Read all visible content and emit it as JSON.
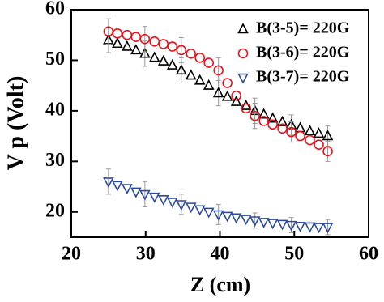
{
  "chart_data": {
    "type": "scatter",
    "x_label": "Z (cm)",
    "y_label": "V p (Volt)",
    "x": [
      25,
      26.2,
      27.5,
      28.7,
      29.9,
      31.2,
      32.4,
      33.6,
      34.8,
      36.1,
      37.3,
      38.5,
      39.8,
      41,
      42.2,
      43.5,
      44.7,
      45.9,
      47.1,
      48.4,
      49.6,
      50.8,
      52.1,
      53.3,
      54.5
    ],
    "series": [
      {
        "name": "B(3-5)= 220G",
        "color": "#000000",
        "marker": "triangle-up",
        "values": [
          54,
          53.3,
          52.7,
          52,
          51.3,
          50.5,
          49.8,
          49,
          48,
          47,
          46,
          45,
          43.5,
          42.8,
          41.8,
          41,
          40,
          39.3,
          38.5,
          37.8,
          37.2,
          36.6,
          36,
          35.5,
          35
        ],
        "errors": [
          2.5,
          null,
          null,
          null,
          2.5,
          null,
          null,
          null,
          2.5,
          null,
          null,
          null,
          2.5,
          null,
          null,
          null,
          2.5,
          null,
          null,
          null,
          2,
          null,
          null,
          null,
          2
        ]
      },
      {
        "name": "B(3-6)= 220G",
        "color": "#e8141c",
        "marker": "circle",
        "values": [
          55.7,
          55.3,
          55,
          54.6,
          54.2,
          53.7,
          53.2,
          52.7,
          52,
          51.3,
          50.5,
          49.5,
          48,
          45.5,
          43,
          40.5,
          39,
          38,
          37.3,
          36.5,
          35.8,
          35,
          34.2,
          33.3,
          32
        ],
        "errors": [
          2.5,
          null,
          null,
          null,
          2.5,
          null,
          null,
          null,
          2.5,
          null,
          null,
          null,
          2.5,
          null,
          null,
          null,
          2.5,
          null,
          null,
          null,
          2,
          null,
          null,
          null,
          2
        ]
      },
      {
        "name": "B(3-7)= 220G",
        "color": "#2b4aa0",
        "marker": "triangle-down",
        "values": [
          26,
          25.3,
          24.7,
          24,
          23.5,
          23,
          22.5,
          22,
          21.5,
          21,
          20.5,
          20,
          19.5,
          19.2,
          18.9,
          18.6,
          18.3,
          18,
          17.8,
          17.6,
          17.4,
          17.2,
          17.1,
          17,
          17
        ],
        "errors": [
          2.5,
          null,
          null,
          null,
          2.5,
          null,
          null,
          null,
          2,
          null,
          null,
          null,
          2,
          null,
          null,
          null,
          1.5,
          null,
          null,
          null,
          1.5,
          null,
          null,
          null,
          1.5
        ]
      }
    ],
    "xlim": [
      20,
      60
    ],
    "xticks": [
      20,
      30,
      40,
      50,
      60
    ],
    "ylim": [
      15,
      60
    ],
    "yticks": [
      20,
      30,
      40,
      50,
      60
    ],
    "legend": "upper right"
  }
}
